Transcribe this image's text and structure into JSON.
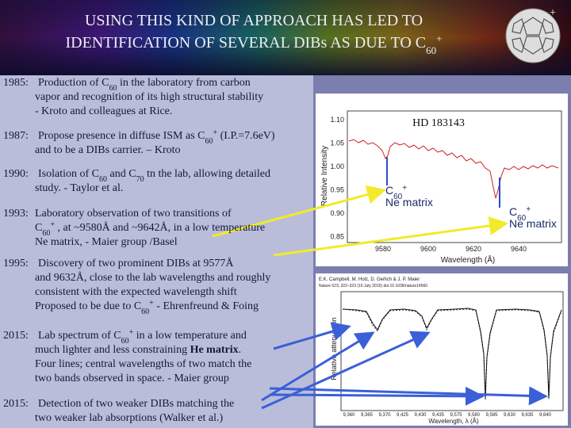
{
  "title": {
    "lines": [
      [
        "USING THIS KIND OF APPROACH HAS LED TO"
      ],
      [
        "IDENTIFICATION OF SEVERAL DIBs AS DUE TO C",
        {
          "sub": "60"
        },
        {
          "sup": "+"
        }
      ]
    ]
  },
  "icon_charge": "+",
  "entries": [
    {
      "year": "1985:",
      "lines": [
        [
          "Production of C",
          {
            "sub": "60"
          },
          " in the laboratory from carbon"
        ],
        [
          "vapor and recognition of its high structural stability"
        ],
        [
          "- Kroto and colleagues at Rice."
        ]
      ]
    },
    {
      "year": "1987:",
      "lines": [
        [
          "Propose presence in diffuse ISM as C",
          {
            "sub": "60"
          },
          {
            "sup": "+"
          },
          " (I.P.=7.6eV)"
        ],
        [
          "and to be a DIBs carrier.  – Kroto"
        ]
      ]
    },
    {
      "year": "1990:",
      "lines": [
        [
          "Isolation of C",
          {
            "sub": "60"
          },
          " and C",
          {
            "sub": "70"
          },
          " tn the lab, allowing detailed"
        ],
        [
          "study.  - Taylor et al."
        ]
      ]
    },
    {
      "year": "1993:",
      "lines": [
        [
          "Laboratory observation of two transitions of"
        ],
        [
          "C",
          {
            "sub": "60"
          },
          {
            "sup": "+"
          },
          " , at ~9580Å and ~9642Å, in a low temperature"
        ],
        [
          "Ne matrix,  - Maier group /Basel"
        ]
      ]
    },
    {
      "year": "1995:",
      "lines": [
        [
          "Discovery of two prominent DIBs at 9577Å"
        ],
        [
          "and 9632Å, close to the lab wavelengths and roughly"
        ],
        [
          "consistent with the expected wavelength shift"
        ],
        [
          "Proposed to be due to C",
          {
            "sub": "60"
          },
          {
            "sup": "+"
          },
          "  - Ehrenfreund & Foing"
        ]
      ]
    },
    {
      "year": "2015:",
      "lines": [
        [
          "Lab spectrum of C",
          {
            "sub": "60"
          },
          {
            "sup": "+"
          },
          " in a low temperature and"
        ],
        [
          "much lighter and less constraining ",
          {
            "bold": "He matrix"
          },
          "."
        ],
        [
          "Four lines; central wavelengths of two match the"
        ],
        [
          "two bands observed in space.  - Maier group"
        ]
      ]
    },
    {
      "year": "2015:",
      "lines": [
        [
          "Detection of two weaker DIBs matching the"
        ],
        [
          "two weaker lab absorptions (Walker et al.)"
        ]
      ]
    }
  ],
  "upper_plot": {
    "star": "HD 183143",
    "y_label": "Relative Intensity",
    "x_label": "Wavelength (Å)",
    "yticks": [
      "1.10",
      "1.05",
      "1.00",
      "0.95",
      "0.90",
      "0.85"
    ],
    "xticks": [
      "9580",
      "9600",
      "9620",
      "9640"
    ],
    "markers": [
      {
        "lines": [
          [
            "C",
            {
              "sub": "60"
            },
            {
              "sup": "+"
            }
          ],
          [
            "Ne matrix"
          ]
        ]
      },
      {
        "lines": [
          [
            "C",
            {
              "sub": "60"
            },
            {
              "sup": "+"
            }
          ],
          [
            "Ne matrix"
          ]
        ]
      }
    ]
  },
  "lower_plot": {
    "authors": "E.K. Campbell, M. Holz, D. Gerlich & J. P. Maier",
    "citation": "Nature 523, 322–323 (16 July 2015)  doi:10.1038/nature14566",
    "y_label": "Relative attenuation",
    "x_label": "Wavelength, λ (Å)",
    "xticks": [
      "9,360",
      "9,365",
      "9,370",
      "9,425",
      "9,430",
      "9,435",
      "9,575",
      "9,580",
      "9,585",
      "9,630",
      "9,635",
      "9,640"
    ]
  }
}
